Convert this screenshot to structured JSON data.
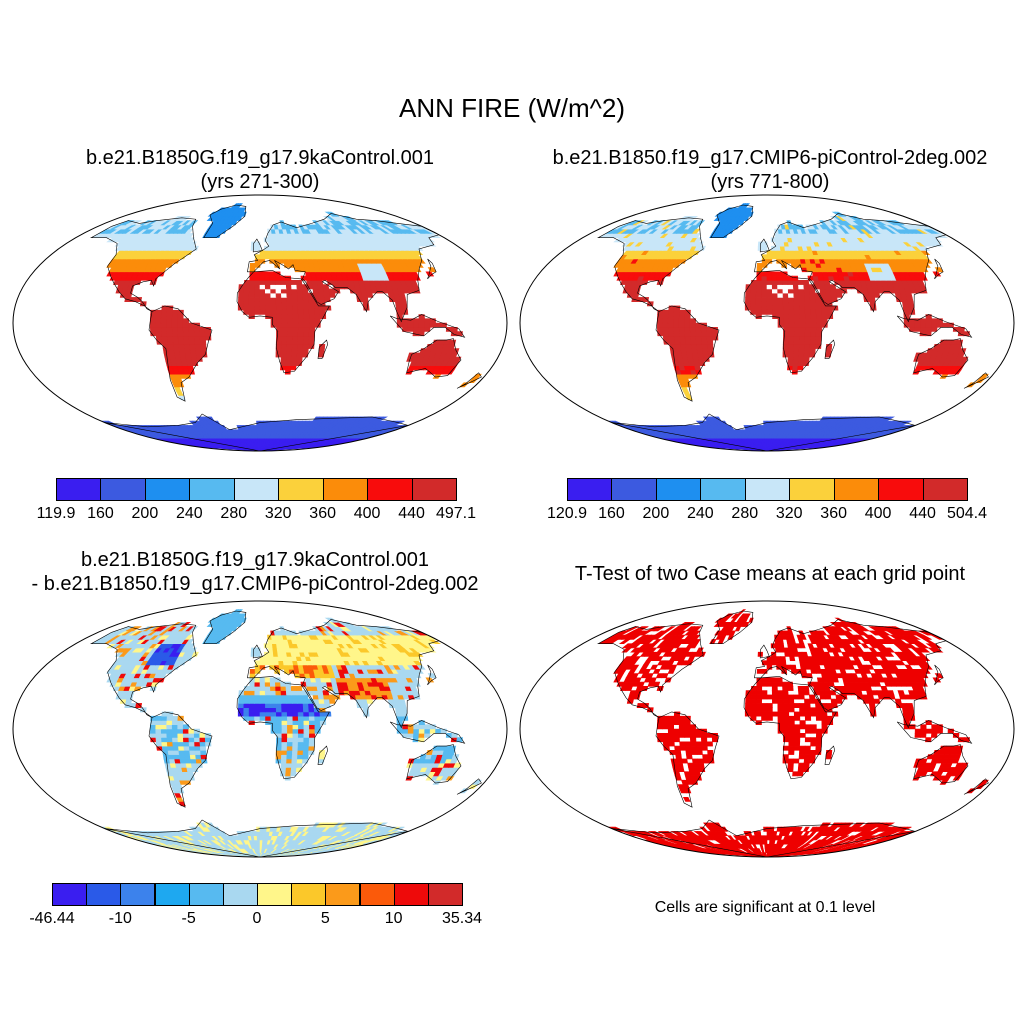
{
  "main_title": "ANN FIRE (W/m^2)",
  "panels": [
    {
      "title_line1": "b.e21.B1850G.f19_g17.9kaControl.001",
      "title_line2": "(yrs 271-300)",
      "colorbar": {
        "colors": [
          "#3a1ef0",
          "#3c5ae0",
          "#1e8ff0",
          "#57baf0",
          "#c8e6f8",
          "#fbd13b",
          "#fb8c0a",
          "#f80c0c",
          "#d22a2a"
        ],
        "labels": [
          "119.9",
          "160",
          "200",
          "240",
          "280",
          "320",
          "360",
          "400",
          "440",
          "497.1"
        ]
      }
    },
    {
      "title_line1": "b.e21.B1850.f19_g17.CMIP6-piControl-2deg.002",
      "title_line2": "(yrs 771-800)",
      "colorbar": {
        "colors": [
          "#3a1ef0",
          "#3c5ae0",
          "#1e8ff0",
          "#57baf0",
          "#c8e6f8",
          "#fbd13b",
          "#fb8c0a",
          "#f80c0c",
          "#d22a2a"
        ],
        "labels": [
          "120.9",
          "160",
          "200",
          "240",
          "280",
          "320",
          "360",
          "400",
          "440",
          "504.4"
        ]
      }
    },
    {
      "title_line1": "b.e21.B1850G.f19_g17.9kaControl.001",
      "title_line2": "- b.e21.B1850.f19_g17.CMIP6-piControl-2deg.002",
      "colorbar": {
        "colors": [
          "#3a1ef0",
          "#2a5ae8",
          "#3c82ec",
          "#1ea8f0",
          "#57baf0",
          "#a9d8f0",
          "#fff68a",
          "#fbc82a",
          "#fb9a1a",
          "#fb5a0a",
          "#ee0a0a",
          "#d22a2a"
        ],
        "labels": [
          "-46.44",
          "-10",
          "-5",
          "0",
          "5",
          "10",
          "35.34"
        ]
      }
    },
    {
      "title_line1": "T-Test of two Case means at each grid point",
      "note": "Cells are significant at 0.1 level"
    }
  ]
}
